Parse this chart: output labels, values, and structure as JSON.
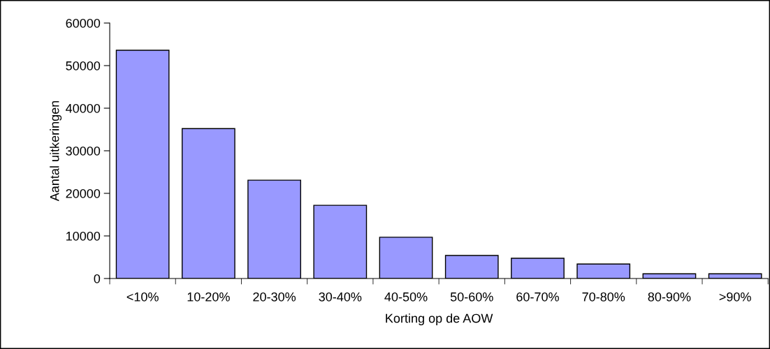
{
  "chart_data": {
    "type": "bar",
    "xlabel": "Korting op de AOW",
    "ylabel": "Aantal uitkeringen",
    "categories": [
      "<10%",
      "10-20%",
      "20-30%",
      "30-40%",
      "40-50%",
      "50-60%",
      "60-70%",
      "70-80%",
      "80-90%",
      ">90%"
    ],
    "values": [
      53600,
      35200,
      23100,
      17200,
      9700,
      5400,
      4750,
      3400,
      1100,
      1100
    ],
    "color": "#9999ff",
    "ylim": [
      0,
      60000
    ],
    "yticks": [
      0,
      10000,
      20000,
      30000,
      40000,
      50000,
      60000
    ],
    "grid": false,
    "legend": false
  }
}
